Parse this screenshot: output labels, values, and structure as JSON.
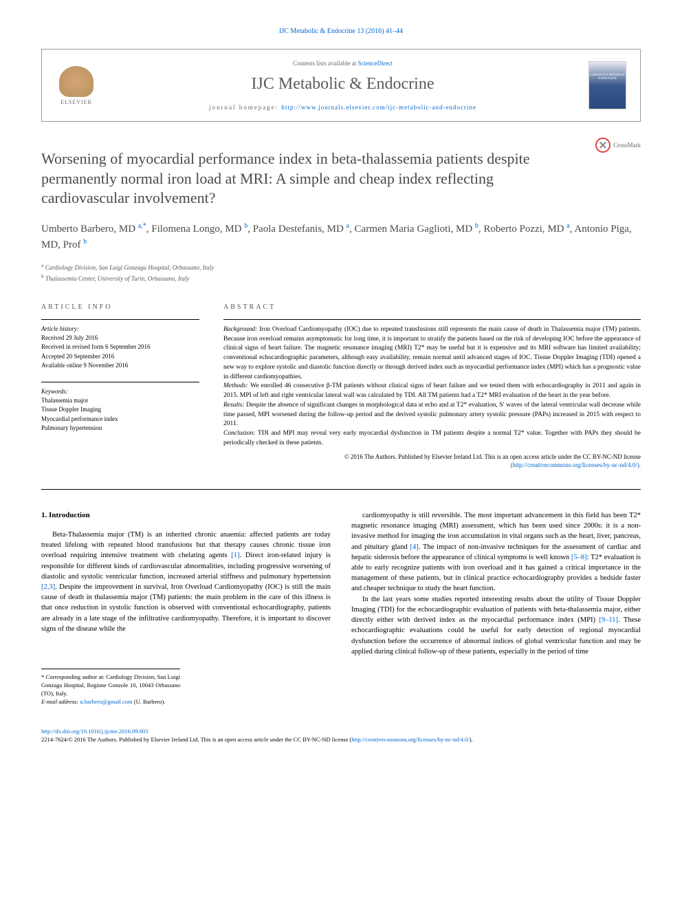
{
  "journal_ref": "IJC Metabolic & Endocrine 13 (2016) 41–44",
  "header": {
    "contents_prefix": "Contents lists available at ",
    "contents_link": "ScienceDirect",
    "journal_title": "IJC Metabolic & Endocrine",
    "homepage_prefix": "journal homepage: ",
    "homepage_url": "http://www.journals.elsevier.com/ijc-metabolic-and-endocrine",
    "elsevier_label": "ELSEVIER",
    "cover_text": "CARDIOLOGY METABOLIC & ENDOCRINE"
  },
  "crossmark_label": "CrossMark",
  "article_title": "Worsening of myocardial performance index in beta-thalassemia patients despite permanently normal iron load at MRI: A simple and cheap index reflecting cardiovascular involvement?",
  "authors_html": "Umberto Barbero, MD <sup>a,*</sup>, Filomena Longo, MD <sup>b</sup>, Paola Destefanis, MD <sup>a</sup>, Carmen Maria Gaglioti, MD <sup>b</sup>, Roberto Pozzi, MD <sup>a</sup>, Antonio Piga, MD, Prof <sup>b</sup>",
  "affiliations": {
    "a": "Cardiology Division, San Luigi Gonzaga Hospital, Orbassano, Italy",
    "b": "Thalassemia Center, University of Turin, Orbassano, Italy"
  },
  "article_info": {
    "section_label": "ARTICLE INFO",
    "history_label": "Article history:",
    "history": [
      "Received 29 July 2016",
      "Received in revised form 6 September 2016",
      "Accepted 20 September 2016",
      "Available online 9 November 2016"
    ],
    "keywords_label": "Keywords:",
    "keywords": [
      "Thalassemia major",
      "Tissue Doppler Imaging",
      "Myocardial performance index",
      "Pulmonary hypertension"
    ]
  },
  "abstract": {
    "section_label": "ABSTRACT",
    "background_label": "Background:",
    "background": "Iron Overload Cardiomyopathy (IOC) due to repeated transfusions still represents the main cause of death in Thalassemia major (TM) patients. Because iron overload remains asymptomatic for long time, it is important to stratify the patients based on the risk of developing IOC before the appearance of clinical signs of heart failure. The magnetic resonance imaging (MRI) T2* may be useful but it is expensive and its MRI software has limited availability; conventional echocardiographic parameters, although easy availability, remain normal until advanced stages of IOC. Tissue Doppler Imaging (TDI) opened a new way to explore systolic and diastolic function directly or through derived index such as myocardial performance index (MPI) which has a prognostic value in different cardiomyopathies.",
    "methods_label": "Methods:",
    "methods": "We enrolled 46 consecutive β-TM patients without clinical signs of heart failure and we tested them with echocardiography in 2011 and again in 2015. MPI of left and right ventricular lateral wall was calculated by TDI. All TM patients had a T2* MRI evaluation of the heart in the year before.",
    "results_label": "Results:",
    "results": "Despite the absence of significant changes in morphological data at echo and at T2* evaluation, S′ waves of the lateral ventricular wall decrease while time passed, MPI worsened during the follow-up period and the derived systolic pulmonary artery systolic pressure (PAPs) increased in 2015 with respect to 2011.",
    "conclusion_label": "Conclusion:",
    "conclusion": "TDI and MPI may reveal very early myocardial dysfunction in TM patients despite a normal T2* value. Together with PAPs they should be periodically checked in these patients.",
    "copyright": "© 2016 The Authors. Published by Elsevier Ireland Ltd. This is an open access article under the CC BY-NC-ND license",
    "copyright_link": "(http://creativecommons.org/licenses/by-nc-nd/4.0/)."
  },
  "intro": {
    "heading": "1. Introduction",
    "col1_p1": "Beta-Thalassemia major (TM) is an inherited chronic anaemia: affected patients are today treated lifelong with repeated blood transfusions but that therapy causes chronic tissue iron overload requiring intensive treatment with chelating agents [1]. Direct iron-related injury is responsible for different kinds of cardiovascular abnormalities, including progressive worsening of diastolic and systolic ventricular function, increased arterial stiffness and pulmonary hypertension [2,3]. Despite the improvement in survival, Iron Overload Cardiomyopathy (IOC) is still the main cause of death in thalassemia major (TM) patients: the main problem in the care of this illness is that once reduction in systolic function is observed with conventional echocardiography, patients are already in a late stage of the infiltrative cardiomyopathy. Therefore, it is important to discover signs of the disease while the",
    "col2_p1": "cardiomyopathy is still reversible. The most important advancement in this field has been T2* magnetic resonance imaging (MRI) assessment, which has been used since 2000s: it is a non-invasive method for imaging the iron accumulation in vital organs such as the heart, liver, pancreas, and pituitary gland [4]. The impact of non-invasive techniques for the assessment of cardiac and hepatic siderosis before the appearance of clinical symptoms is well known [5–8]: T2* evaluation is able to early recognize patients with iron overload and it has gained a critical importance in the management of these patients, but in clinical practice echocardiography provides a bedside faster and cheaper technique to study the heart function.",
    "col2_p2": "In the last years some studies reported interesting results about the utility of Tissue Doppler Imaging (TDI) for the echocardiographic evaluation of patients with beta-thalassemia major, either directly either with derived index as the myocardial performance index (MPI) [9–11]. These echocardiographic evaluations could be useful for early detection of regional myocardial dysfunction before the occurrence of abnormal indices of global ventricular function and may be applied during clinical follow-up of these patients, especially in the period of time"
  },
  "corresponding": {
    "star": "*",
    "text": "Corresponding author at: Cardiology Division, San Luigi Gonzaga Hospital, Regione Gonzole 10, 10043 Orbassano (TO), Italy.",
    "email_label": "E-mail address:",
    "email": "u.barbero@gmail.com",
    "email_suffix": "(U. Barbero)."
  },
  "footer": {
    "doi": "http://dx.doi.org/10.1016/j.ijcme.2016.09.003",
    "copyright": "2214-7624/© 2016 The Authors. Published by Elsevier Ireland Ltd. This is an open access article under the CC BY-NC-ND license (",
    "license_url": "http://creativecommons.org/licenses/by-nc-nd/4.0/",
    "close": ")."
  },
  "colors": {
    "link": "#0066cc",
    "text": "#000000",
    "muted": "#555555",
    "title_gray": "#4a4a4a"
  }
}
